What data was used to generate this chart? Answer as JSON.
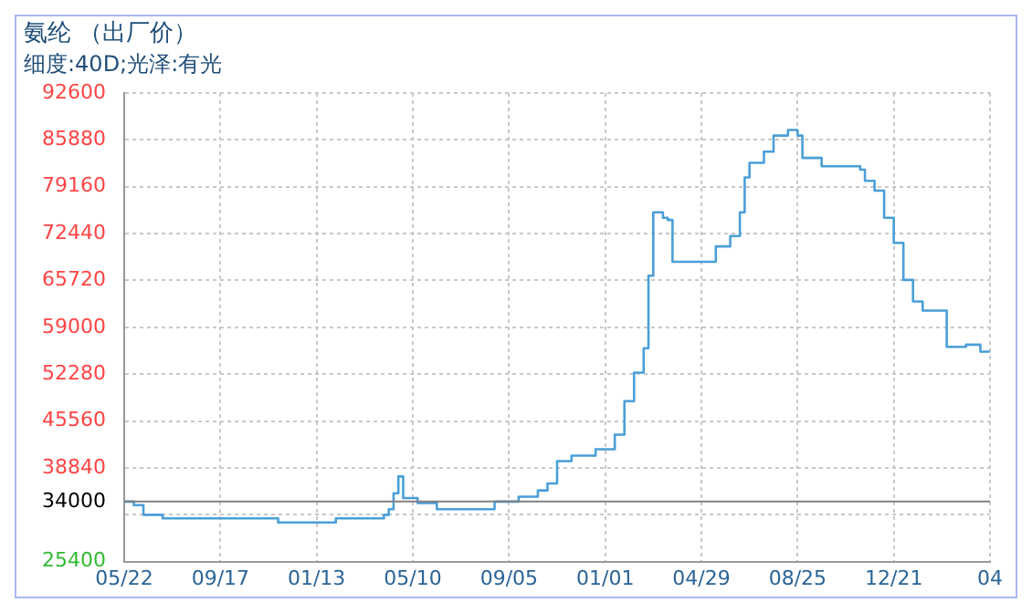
{
  "chart_data": {
    "type": "step",
    "title": "氨纶 （出厂价）",
    "subtitle": "细度:40D;光泽:有光",
    "categories": [
      "05/22",
      null,
      null,
      null,
      null,
      null,
      null,
      null,
      null,
      null,
      null,
      null,
      null,
      null,
      null,
      null,
      null,
      null,
      null,
      null,
      "09/17",
      null,
      null,
      null,
      null,
      null,
      null,
      null,
      null,
      null,
      null,
      null,
      null,
      null,
      null,
      null,
      null,
      null,
      null,
      null,
      "01/13",
      null,
      null,
      null,
      null,
      null,
      null,
      null,
      null,
      null,
      null,
      null,
      null,
      null,
      null,
      null,
      null,
      null,
      null,
      null,
      "05/10",
      null,
      null,
      null,
      null,
      null,
      null,
      null,
      null,
      null,
      null,
      null,
      null,
      null,
      null,
      null,
      null,
      null,
      null,
      null,
      "09/05",
      null,
      null,
      null,
      null,
      null,
      null,
      null,
      null,
      null,
      null,
      null,
      null,
      null,
      null,
      null,
      null,
      null,
      null,
      null,
      "01/01",
      null,
      null,
      null,
      null,
      null,
      null,
      null,
      null,
      null,
      null,
      null,
      null,
      null,
      null,
      null,
      null,
      null,
      null,
      null,
      "04/29",
      null,
      null,
      null,
      null,
      null,
      null,
      null,
      null,
      null,
      null,
      null,
      null,
      null,
      null,
      null,
      null,
      null,
      null,
      null,
      "08/25",
      null,
      null,
      null,
      null,
      null,
      null,
      null,
      null,
      null,
      null,
      null,
      null,
      null,
      null,
      null,
      null,
      null,
      null,
      null,
      "12/21",
      null,
      null,
      null,
      null,
      null,
      null,
      null,
      null,
      null,
      null,
      null,
      null,
      null,
      null,
      null,
      null,
      null,
      null,
      null,
      "04"
    ],
    "series": [
      {
        "color": "#4a9fd8",
        "values": [
          34000,
          34000,
          33500,
          33500,
          32100,
          32100,
          32100,
          32100,
          31600,
          31600,
          31600,
          31600,
          31600,
          31600,
          31600,
          31600,
          31600,
          31600,
          31600,
          31600,
          31600,
          31600,
          31600,
          31600,
          31600,
          31600,
          31600,
          31600,
          31600,
          31600,
          31600,
          31600,
          31000,
          31000,
          31000,
          31000,
          31000,
          31000,
          31000,
          31000,
          31000,
          31000,
          31000,
          31000,
          31600,
          31600,
          31600,
          31600,
          31600,
          31600,
          31600,
          31600,
          31600,
          31600,
          32100,
          32900,
          35200,
          37600,
          34500,
          34500,
          34500,
          33800,
          33800,
          33800,
          33800,
          32900,
          32900,
          32900,
          32900,
          32900,
          32900,
          32900,
          32900,
          32900,
          32900,
          32900,
          32900,
          34000,
          34000,
          34000,
          34000,
          34000,
          34700,
          34700,
          34700,
          34700,
          35600,
          35600,
          36600,
          36600,
          39800,
          39800,
          39800,
          40600,
          40600,
          40600,
          40600,
          40600,
          41500,
          41500,
          41500,
          41500,
          43600,
          43600,
          48400,
          48400,
          52500,
          52500,
          56000,
          66400,
          75500,
          75500,
          74700,
          74400,
          68400,
          68400,
          68400,
          68400,
          68400,
          68400,
          68400,
          68400,
          68400,
          70600,
          70600,
          70600,
          72100,
          72100,
          75500,
          80500,
          82600,
          82600,
          82600,
          84200,
          84200,
          86500,
          86500,
          86500,
          87300,
          87300,
          86500,
          83300,
          83300,
          83300,
          83300,
          82100,
          82100,
          82100,
          82100,
          82100,
          82100,
          82100,
          82100,
          81600,
          80000,
          80000,
          78600,
          78600,
          74700,
          74700,
          71100,
          71100,
          65800,
          65800,
          62700,
          62700,
          61400,
          61400,
          61400,
          61400,
          61400,
          56200,
          56200,
          56200,
          56200,
          56500,
          56500,
          56500,
          55500,
          55500,
          55500
        ]
      }
    ],
    "ylim": [
      25400,
      92600
    ],
    "yticks": [
      25400,
      {
        "value": 32120,
        "label": null
      },
      38840,
      45560,
      52280,
      59000,
      65720,
      72440,
      79160,
      85880,
      92600
    ],
    "ref_lines": [
      {
        "axis": "y",
        "value": 34000,
        "label": "34000",
        "color": "#808080"
      }
    ],
    "grid": true,
    "legend": false
  }
}
